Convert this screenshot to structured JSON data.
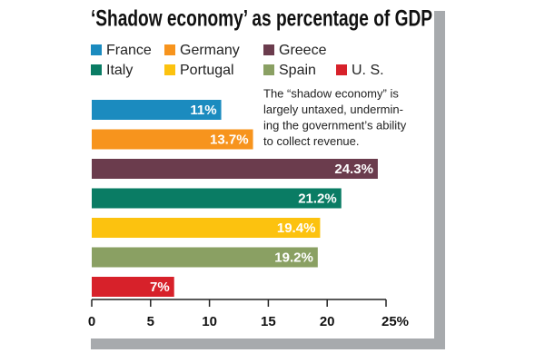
{
  "chart_data": {
    "type": "bar",
    "orientation": "horizontal",
    "title": "‘Shadow economy’ as percentage of GDP",
    "annotation": [
      "The “shadow economy” is",
      "largely untaxed, undermin-",
      "ing the government’s ability",
      "to collect revenue."
    ],
    "series": [
      {
        "name": "France",
        "color": "#1b8bbf",
        "values": [
          11
        ],
        "value_labels": [
          "11%"
        ]
      },
      {
        "name": "Germany",
        "color": "#f7941d",
        "values": [
          13.7
        ],
        "value_labels": [
          "13.7%"
        ]
      },
      {
        "name": "Greece",
        "color": "#6b3c4d",
        "values": [
          24.3
        ],
        "value_labels": [
          "24.3%"
        ]
      },
      {
        "name": "Italy",
        "color": "#0a7c64",
        "values": [
          21.2
        ],
        "value_labels": [
          "21.2%"
        ]
      },
      {
        "name": "Portugal",
        "color": "#fcc20f",
        "values": [
          19.4
        ],
        "value_labels": [
          "19.4%"
        ]
      },
      {
        "name": "Spain",
        "color": "#8aa063",
        "values": [
          19.2
        ],
        "value_labels": [
          "19.2%"
        ]
      },
      {
        "name": "U. S.",
        "color": "#d7212a",
        "values": [
          7
        ],
        "value_labels": [
          "7%"
        ]
      }
    ],
    "xlim": [
      0,
      25
    ],
    "xticks": [
      0,
      5,
      10,
      15,
      20,
      {
        "value": 25,
        "label": "25%"
      }
    ]
  }
}
